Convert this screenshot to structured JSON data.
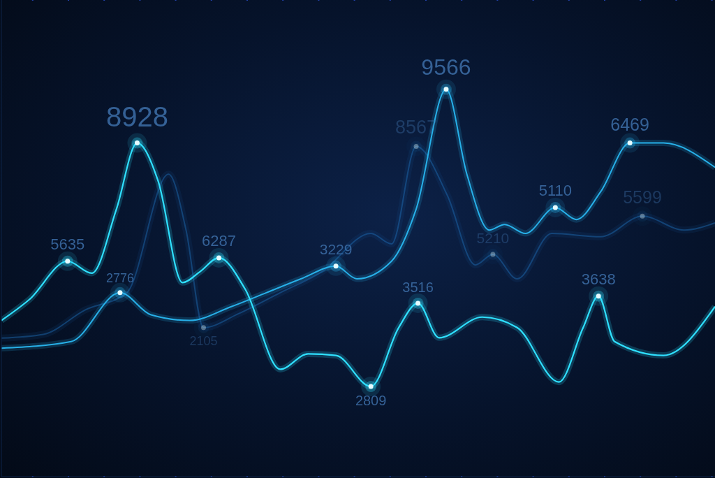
{
  "chart_data": {
    "type": "line",
    "xlim": [
      -0.875,
      19.125
    ],
    "ylim": [
      -0.9,
      11.8
    ],
    "xticks": [
      0,
      1,
      2,
      3,
      4,
      5,
      6,
      7,
      8,
      9,
      10,
      11,
      12,
      13,
      14,
      15,
      16,
      17,
      18,
      19
    ],
    "yticks": [
      0,
      1,
      2,
      3,
      4,
      5,
      6,
      7,
      8,
      9,
      10,
      11
    ],
    "grid": true,
    "tick_labels": false,
    "series": [
      {
        "color": "#1f6fb8",
        "x": [
          -0.875,
          0.3,
          1.47,
          2.64,
          3.81,
          4.3,
          4.79,
          5.77,
          6.94,
          8.11,
          9.48,
          10.06,
          10.75,
          11.62,
          12.41,
          12.9,
          13.58,
          14.55,
          15.92,
          17.09,
          18.26,
          19.125
        ],
        "values": [
          2.79,
          2.89,
          3.54,
          4.0,
          7.16,
          5.67,
          3.07,
          3.44,
          4.0,
          4.56,
          5.58,
          5.3,
          7.9,
          6.6,
          4.74,
          5.02,
          4.37,
          5.58,
          5.49,
          6.04,
          5.67,
          5.86
        ]
      },
      {
        "color": "#29b6f0",
        "x": [
          -0.875,
          1.08,
          2.45,
          3.32,
          4.4,
          5.57,
          6.55,
          7.52,
          8.5,
          9.09,
          10.06,
          10.75,
          11.59,
          12.17,
          12.8,
          13.23,
          13.81,
          14.65,
          15.24,
          15.92,
          16.74,
          17.68,
          19.125
        ],
        "values": [
          2.52,
          2.7,
          4.0,
          3.41,
          3.26,
          3.63,
          4.0,
          4.37,
          4.71,
          4.37,
          4.84,
          6.23,
          9.42,
          7.16,
          5.67,
          5.82,
          5.58,
          6.27,
          5.95,
          6.69,
          7.99,
          7.99,
          7.34
        ]
      },
      {
        "color": "#2fe0ff",
        "x": [
          -0.875,
          -0.09,
          0.98,
          1.66,
          2.35,
          2.93,
          3.52,
          4.2,
          4.69,
          5.22,
          5.96,
          6.94,
          7.72,
          8.5,
          9.48,
          10.26,
          10.8,
          11.39,
          12.6,
          13.58,
          14.75,
          15.43,
          15.86,
          16.31,
          17.68,
          19.125
        ],
        "values": [
          3.26,
          3.82,
          4.84,
          4.52,
          6.23,
          7.99,
          6.97,
          4.27,
          4.56,
          4.93,
          4.09,
          1.96,
          2.37,
          2.33,
          1.5,
          3.07,
          3.72,
          2.8,
          3.35,
          3.07,
          1.62,
          3.07,
          3.91,
          2.7,
          2.33,
          3.63
        ]
      }
    ],
    "annotations": [
      {
        "text": "5635",
        "x": 0.98,
        "y": 4.84
      },
      {
        "text": "2776",
        "x": 2.45,
        "y": 4.0
      },
      {
        "text": "8928",
        "x": 2.93,
        "y": 7.99
      },
      {
        "text": "6287",
        "x": 5.22,
        "y": 4.93
      },
      {
        "text": "2105",
        "x": 4.79,
        "y": 3.07
      },
      {
        "text": "3229",
        "x": 8.5,
        "y": 4.71
      },
      {
        "text": "8567",
        "x": 10.75,
        "y": 7.9
      },
      {
        "text": "9566",
        "x": 11.59,
        "y": 9.42
      },
      {
        "text": "5210",
        "x": 12.9,
        "y": 5.02
      },
      {
        "text": "3516",
        "x": 10.8,
        "y": 3.72
      },
      {
        "text": "2809",
        "x": 9.48,
        "y": 1.5
      },
      {
        "text": "5110",
        "x": 14.65,
        "y": 6.27
      },
      {
        "text": "3638",
        "x": 15.86,
        "y": 3.91
      },
      {
        "text": "6469",
        "x": 16.74,
        "y": 7.99
      },
      {
        "text": "5599",
        "x": 17.09,
        "y": 6.04
      }
    ]
  }
}
